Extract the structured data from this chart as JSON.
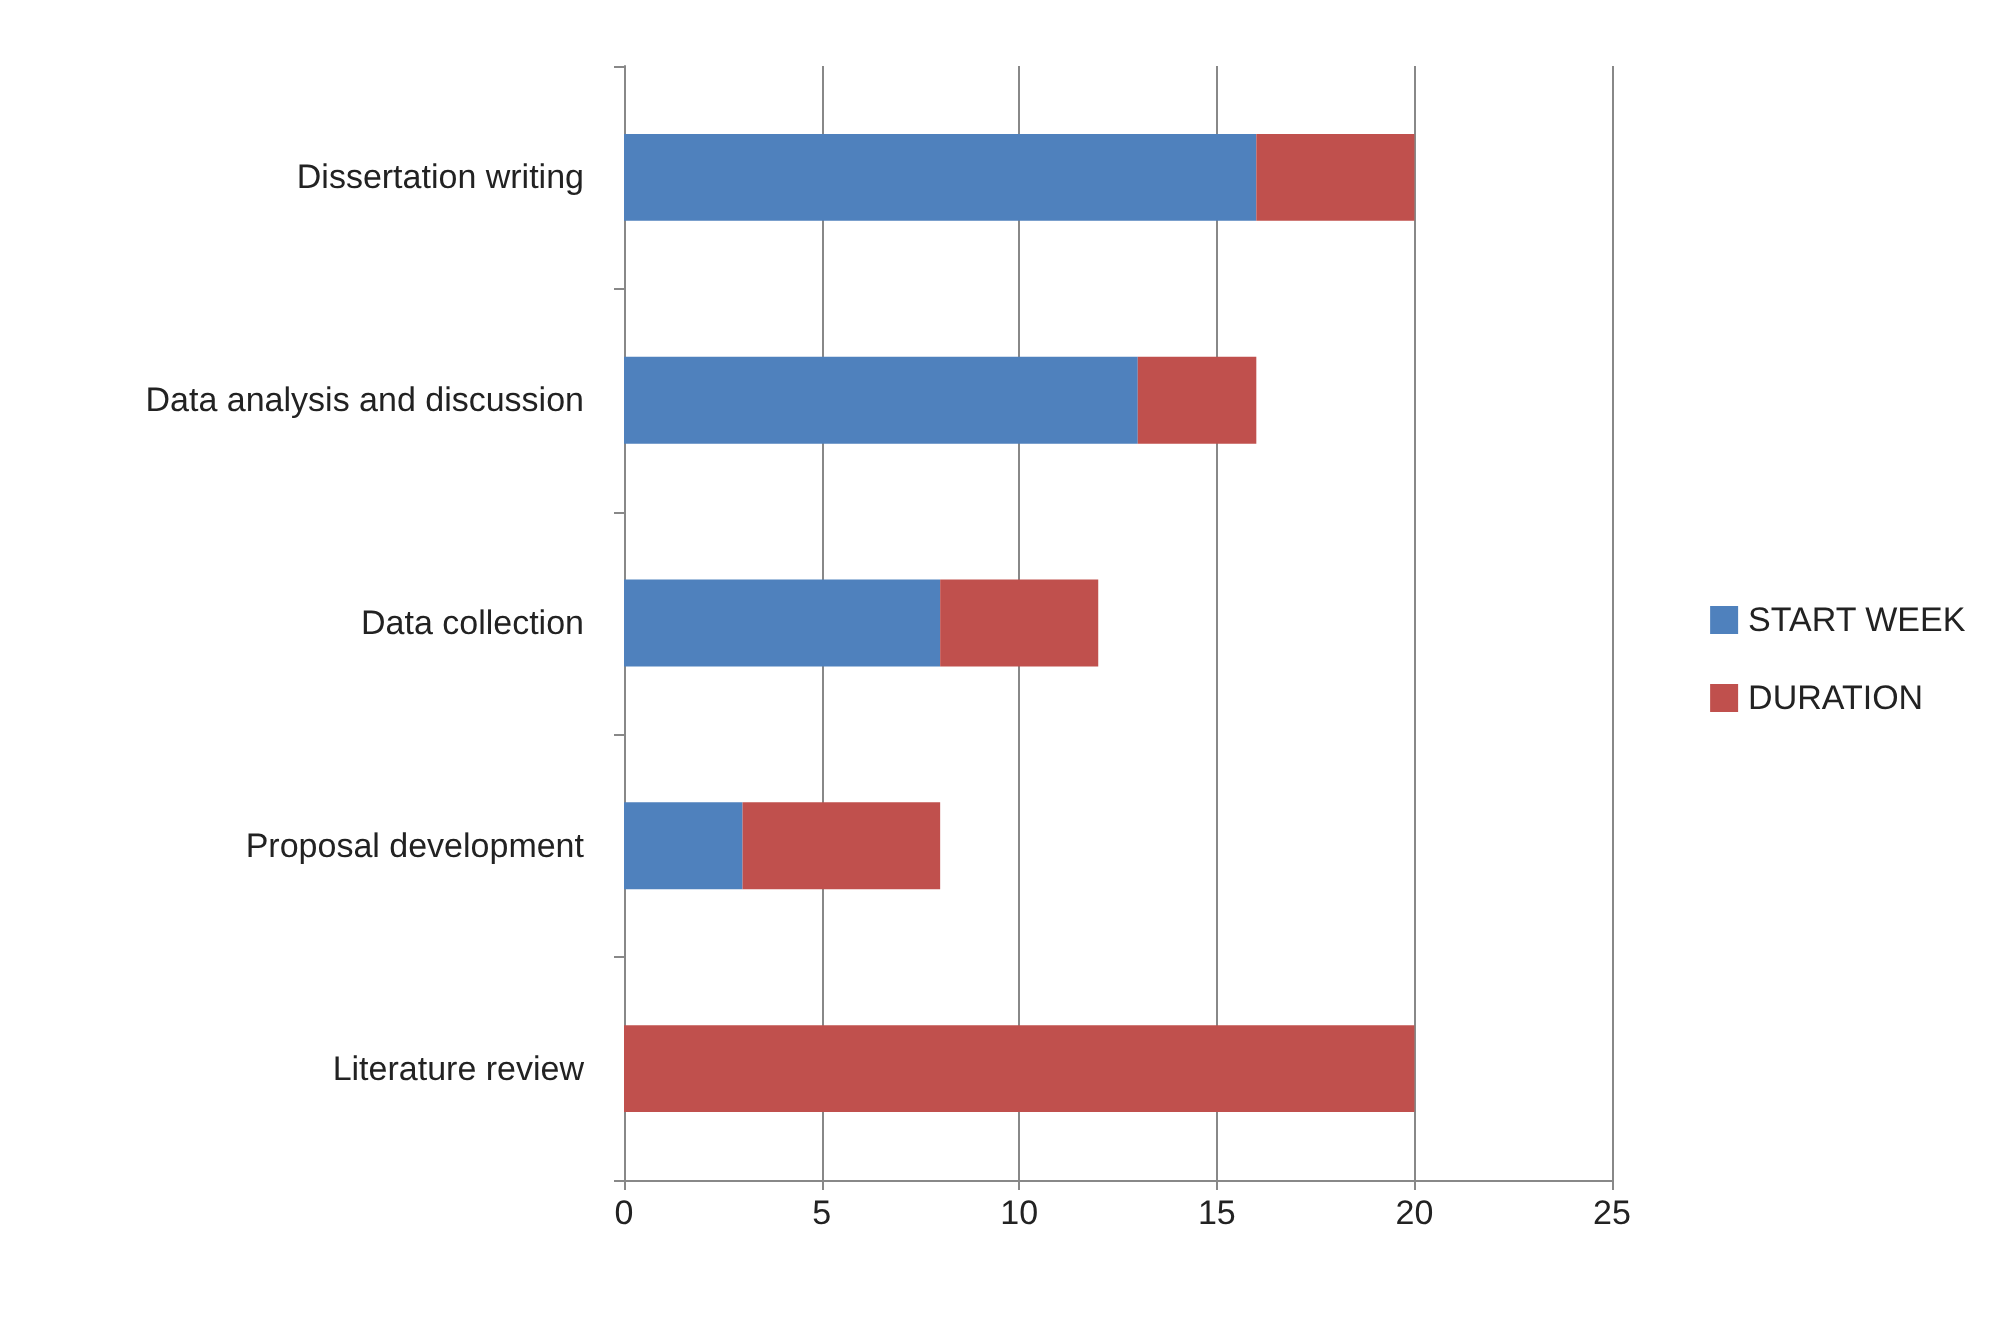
{
  "chart_data": {
    "type": "bar",
    "orientation": "horizontal",
    "stacked": true,
    "categories": [
      "Dissertation writing",
      "Data analysis and discussion",
      "Data collection",
      "Proposal development",
      "Literature review"
    ],
    "series": [
      {
        "name": "START WEEK",
        "color": "#4f81bd",
        "values": [
          16,
          13,
          8,
          3,
          0
        ]
      },
      {
        "name": "DURATION",
        "color": "#c0504d",
        "values": [
          4,
          3,
          4,
          5,
          20
        ]
      }
    ],
    "xlim": [
      0,
      25
    ],
    "xticks": [
      0,
      5,
      10,
      15,
      20,
      25
    ],
    "grid": "x",
    "legend": "right"
  }
}
